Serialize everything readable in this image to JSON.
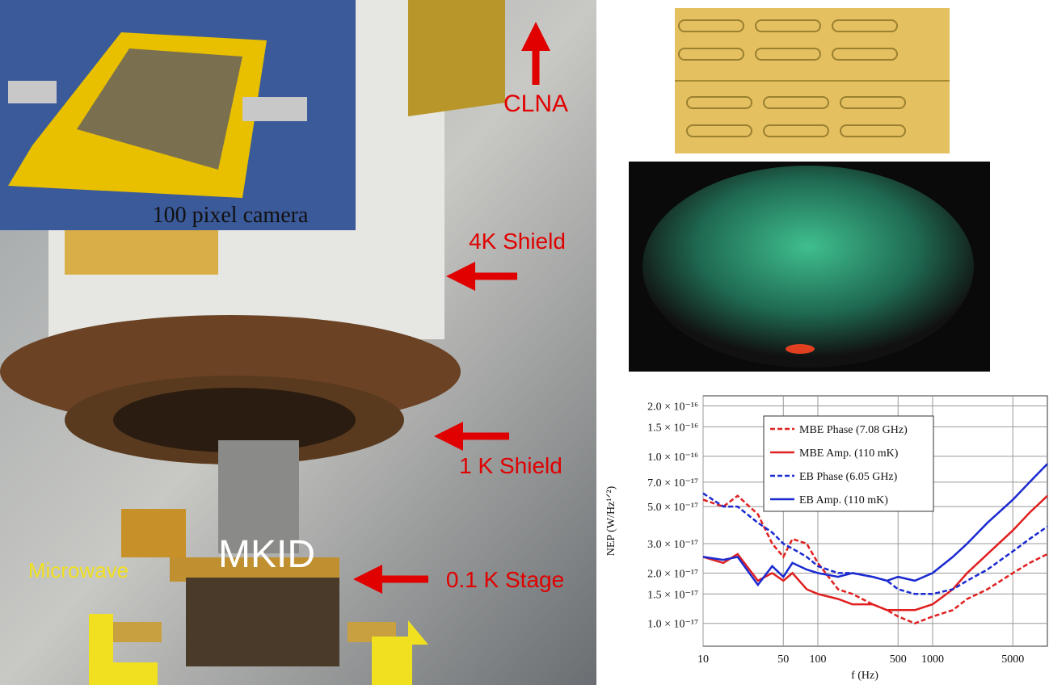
{
  "photo_labels": [
    "100 pixel camera",
    "CLNA",
    "4K Shield",
    "1 K Shield",
    "MKID",
    "0.1 K Stage",
    "Microwave"
  ],
  "chart_data": {
    "type": "line",
    "xlabel": "f (Hz)",
    "ylabel": "NEP (W/Hz¹ᐟ²)",
    "log_x": true,
    "log_y": true,
    "grid": true,
    "legend": "upper-center",
    "x": [
      10,
      15,
      20,
      30,
      40,
      50,
      60,
      80,
      100,
      150,
      200,
      300,
      400,
      500,
      700,
      1000,
      1500,
      2000,
      3000,
      5000,
      7000,
      10000
    ],
    "series": [
      {
        "name": "MBE Phase (7.08 GHz)",
        "color": "#e02020",
        "dash": true,
        "values": [
          5.5e-17,
          5e-17,
          5.8e-17,
          4.5e-17,
          3e-17,
          2.5e-17,
          3.2e-17,
          3e-17,
          2.3e-17,
          1.6e-17,
          1.5e-17,
          1.3e-17,
          1.2e-17,
          1.1e-17,
          1e-17,
          1.1e-17,
          1.2e-17,
          1.4e-17,
          1.6e-17,
          2e-17,
          2.3e-17,
          2.6e-17
        ]
      },
      {
        "name": "MBE Amp. (110 mK)",
        "color": "#e02020",
        "dash": false,
        "values": [
          2.5e-17,
          2.3e-17,
          2.6e-17,
          1.8e-17,
          2e-17,
          1.8e-17,
          2e-17,
          1.6e-17,
          1.5e-17,
          1.4e-17,
          1.3e-17,
          1.3e-17,
          1.2e-17,
          1.2e-17,
          1.2e-17,
          1.3e-17,
          1.6e-17,
          2e-17,
          2.6e-17,
          3.6e-17,
          4.6e-17,
          5.8e-17
        ]
      },
      {
        "name": "EB Phase (6.05 GHz)",
        "color": "#1a2ad0",
        "dash": true,
        "values": [
          6e-17,
          5e-17,
          5e-17,
          4e-17,
          3.5e-17,
          3e-17,
          2.8e-17,
          2.5e-17,
          2.2e-17,
          2e-17,
          2e-17,
          1.9e-17,
          1.8e-17,
          1.6e-17,
          1.5e-17,
          1.5e-17,
          1.6e-17,
          1.8e-17,
          2.1e-17,
          2.7e-17,
          3.2e-17,
          3.8e-17
        ]
      },
      {
        "name": "EB Amp. (110 mK)",
        "color": "#1a2ad0",
        "dash": false,
        "values": [
          2.5e-17,
          2.4e-17,
          2.5e-17,
          1.7e-17,
          2.2e-17,
          1.9e-17,
          2.3e-17,
          2.1e-17,
          2e-17,
          1.9e-17,
          2e-17,
          1.9e-17,
          1.8e-17,
          1.9e-17,
          1.8e-17,
          2e-17,
          2.5e-17,
          3e-17,
          4e-17,
          5.5e-17,
          7e-17,
          9e-17
        ]
      }
    ],
    "xlim": [
      10,
      10000
    ],
    "xticks": [
      10,
      50,
      100,
      500,
      1000,
      5000
    ],
    "ylim": [
      7.3e-18,
      2.3e-16
    ],
    "yticks": [
      {
        "value": 1e-17,
        "label": "1.0 × 10⁻¹⁷"
      },
      {
        "value": 1.5e-17,
        "label": "1.5 × 10⁻¹⁷"
      },
      {
        "value": 2e-17,
        "label": "2.0 × 10⁻¹⁷"
      },
      {
        "value": 3e-17,
        "label": "3.0 × 10⁻¹⁷"
      },
      {
        "value": 5e-17,
        "label": "5.0 × 10⁻¹⁷"
      },
      {
        "value": 7e-17,
        "label": "7.0 × 10⁻¹⁷"
      },
      {
        "value": 1e-16,
        "label": "1.0 × 10⁻¹⁶"
      },
      {
        "value": 1.5e-16,
        "label": "1.5 × 10⁻¹⁶"
      },
      {
        "value": 2e-16,
        "label": "2.0 × 10⁻¹⁶"
      }
    ]
  }
}
